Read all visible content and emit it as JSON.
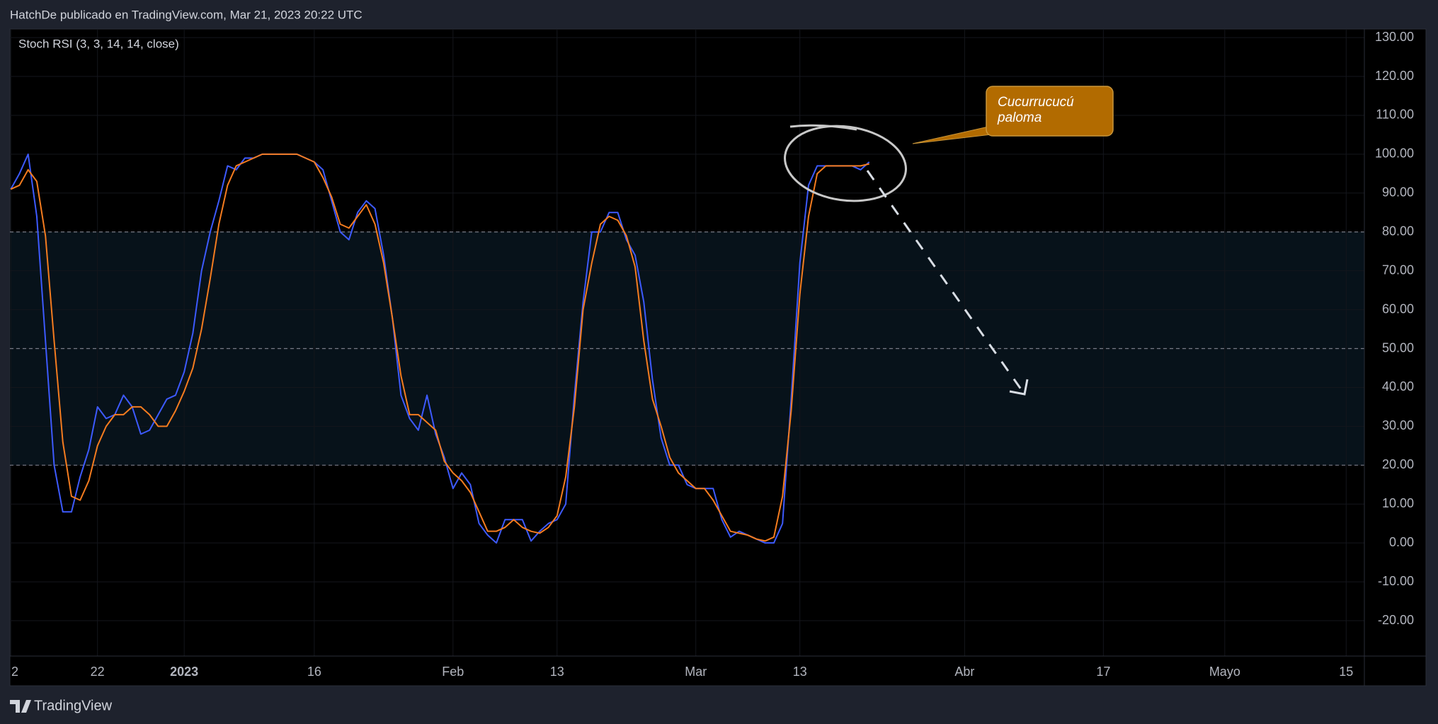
{
  "header": "HatchDe publicado en TradingView.com, Mar 21, 2023 20:22 UTC",
  "footer": "TradingView",
  "chart_data": {
    "type": "line",
    "title": "Stoch RSI (3, 3, 14, 14, close)",
    "x": [
      -20,
      -19,
      -18,
      -17,
      -16,
      -15,
      -14,
      -13,
      -12,
      -11,
      -10,
      -9,
      -8,
      -7,
      -6,
      -5,
      -4,
      -3,
      -2,
      -1,
      0,
      1,
      2,
      3,
      4,
      5,
      6,
      7,
      8,
      9,
      10,
      11,
      12,
      13,
      14,
      15,
      16,
      17,
      18,
      19,
      20,
      21,
      22,
      23,
      24,
      25,
      26,
      27,
      28,
      29,
      30,
      31,
      32,
      33,
      34,
      35,
      36,
      37,
      38,
      39,
      40,
      41,
      42,
      43,
      44,
      45,
      46,
      47,
      48,
      49,
      50,
      51,
      52,
      53,
      54,
      55,
      56,
      57,
      58,
      59,
      60,
      61,
      62,
      63,
      64,
      65,
      66,
      67,
      68,
      69,
      70,
      71,
      72,
      73,
      74,
      75,
      76,
      77,
      78,
      79
    ],
    "series": [
      {
        "color": "#3d5afe",
        "values": [
          91,
          95,
          100,
          84,
          52,
          20,
          8,
          8,
          17,
          24,
          35,
          32,
          33,
          38,
          35,
          28,
          29,
          33,
          37,
          38,
          44,
          54,
          70,
          80,
          88,
          97,
          96,
          99,
          99,
          100,
          100,
          100,
          100,
          100,
          99,
          98,
          96,
          88,
          80,
          78,
          85,
          88,
          86,
          74,
          58,
          38,
          32,
          29,
          38,
          28,
          22,
          14,
          18,
          15,
          5,
          2,
          0,
          6,
          6,
          6,
          0.5,
          3,
          5,
          6,
          10,
          38,
          62,
          80,
          80,
          85,
          85,
          78,
          74,
          62,
          42,
          27,
          20,
          20,
          15,
          14,
          14,
          14,
          6,
          1.5,
          3,
          2,
          1,
          0,
          0,
          5,
          37,
          72,
          92,
          97,
          97,
          97,
          97,
          97,
          96,
          98
        ]
      },
      {
        "color": "#f57c1f",
        "values": [
          91,
          92,
          96,
          93,
          79,
          52,
          26,
          12,
          11,
          16,
          25,
          30,
          33,
          33,
          35,
          35,
          33,
          30,
          30,
          34,
          39,
          45,
          55,
          68,
          82,
          92,
          97,
          98,
          99,
          100,
          100,
          100,
          100,
          100,
          99,
          98,
          94,
          89,
          82,
          81,
          84,
          87,
          82,
          72,
          58,
          43,
          33,
          33,
          31,
          29,
          21,
          18,
          16,
          13,
          8,
          3,
          3,
          4,
          6,
          4,
          3,
          2.5,
          4,
          7,
          17,
          35,
          60,
          72,
          82,
          84,
          83,
          79,
          71,
          52,
          37,
          30,
          22,
          18,
          16,
          14,
          14,
          11,
          7,
          3,
          2.5,
          2,
          1,
          0.5,
          1.5,
          12,
          34,
          64,
          84,
          95,
          97,
          97,
          97,
          97,
          97,
          97.5
        ]
      }
    ],
    "xlim": [
      -20.1,
      136.1
    ],
    "xticks": [
      {
        "value": -20,
        "label": "2"
      },
      {
        "value": -10,
        "label": "22"
      },
      {
        "value": 0,
        "label": "2023"
      },
      {
        "value": 15,
        "label": "16"
      },
      {
        "value": 31,
        "label": "Feb"
      },
      {
        "value": 43,
        "label": "13"
      },
      {
        "value": 59,
        "label": "Mar"
      },
      {
        "value": 71,
        "label": "13"
      },
      {
        "value": 90,
        "label": "Abr"
      },
      {
        "value": 106,
        "label": "17"
      },
      {
        "value": 120,
        "label": "Mayo"
      },
      {
        "value": 134,
        "label": "15"
      }
    ],
    "ylim": [
      -29.1,
      132.2
    ],
    "yticks": [
      {
        "value": 130,
        "label": "130.00"
      },
      {
        "value": 120,
        "label": "120.00"
      },
      {
        "value": 110,
        "label": "110.00"
      },
      {
        "value": 100,
        "label": "100.00"
      },
      {
        "value": 90,
        "label": "90.00"
      },
      {
        "value": 80,
        "label": "80.00"
      },
      {
        "value": 70,
        "label": "70.00"
      },
      {
        "value": 60,
        "label": "60.00"
      },
      {
        "value": 50,
        "label": "50.00"
      },
      {
        "value": 40,
        "label": "40.00"
      },
      {
        "value": 30,
        "label": "30.00"
      },
      {
        "value": 20,
        "label": "20.00"
      },
      {
        "value": 10,
        "label": "10.00"
      },
      {
        "value": 0,
        "label": "0.00"
      },
      {
        "value": -10,
        "label": "-10.00"
      },
      {
        "value": -20,
        "label": "-20.00"
      }
    ],
    "band": [
      20,
      80
    ],
    "band_color": "#07121a",
    "hlines": [
      80,
      50,
      20
    ],
    "grid": true,
    "annotation": [
      "Cucurrucucú",
      "paloma"
    ]
  }
}
